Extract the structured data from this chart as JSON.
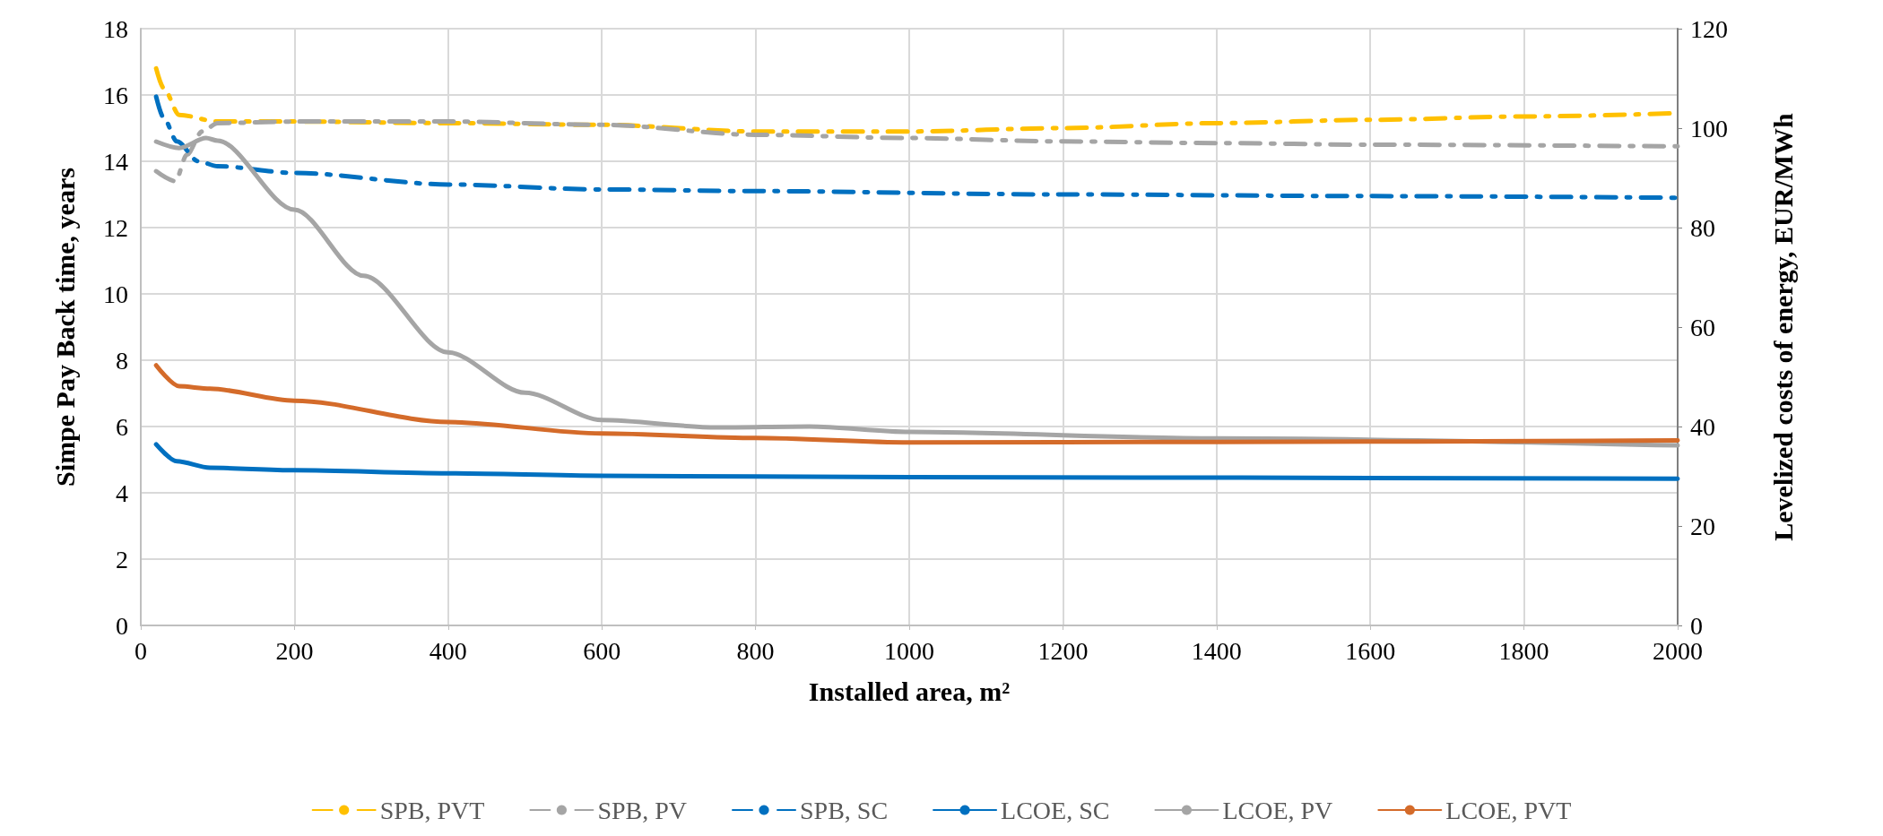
{
  "chart_data": {
    "type": "line",
    "xlabel": "Installed area, m²",
    "ylabel": "Simpe Pay Back time, years",
    "y2label": "Levelized costs of energy, EUR/MWh",
    "xlim": [
      0,
      2000
    ],
    "xticks": [
      0,
      200,
      400,
      600,
      800,
      1000,
      1200,
      1400,
      1600,
      1800,
      2000
    ],
    "ylim": [
      0,
      18
    ],
    "yticks": [
      0,
      2,
      4,
      6,
      8,
      10,
      12,
      14,
      16,
      18
    ],
    "y2lim": [
      0,
      120
    ],
    "y2ticks": [
      0,
      20,
      40,
      60,
      80,
      100,
      120
    ],
    "grid": true,
    "legend": "bottom",
    "marker": "none",
    "series": [
      {
        "name": "SPB, PVT",
        "color": "#ffc000",
        "line_style": "dashed",
        "x": [
          20,
          30,
          50,
          100,
          200,
          400,
          600,
          800,
          1000,
          1200,
          1400,
          1600,
          1800,
          2000
        ],
        "values": [
          16.8,
          16.2,
          15.4,
          15.2,
          15.2,
          15.15,
          15.1,
          14.9,
          14.9,
          15.0,
          15.15,
          15.25,
          15.35,
          15.45
        ]
      },
      {
        "name": "SPB, PV",
        "color": "#a5a5a5",
        "line_style": "dashed",
        "x": [
          20,
          45,
          60,
          80,
          100,
          200,
          400,
          600,
          800,
          1000,
          1200,
          1400,
          1600,
          2000
        ],
        "values": [
          13.7,
          13.4,
          14.2,
          14.9,
          15.15,
          15.2,
          15.2,
          15.1,
          14.8,
          14.7,
          14.6,
          14.55,
          14.5,
          14.45
        ]
      },
      {
        "name": "SPB, SC",
        "color": "#0070c0",
        "line_style": "dashed",
        "x": [
          20,
          30,
          47,
          75,
          100,
          200,
          400,
          600,
          800,
          1200,
          1600,
          2000
        ],
        "values": [
          15.95,
          15.3,
          14.6,
          14.0,
          13.85,
          13.65,
          13.3,
          13.15,
          13.1,
          13.0,
          12.95,
          12.9
        ]
      },
      {
        "name": "LCOE, SC",
        "color": "#0070c0",
        "line_style": "solid",
        "axis": "y2",
        "x": [
          20,
          47,
          90,
          200,
          400,
          600,
          1000,
          2000
        ],
        "values": [
          36.4,
          33.0,
          31.7,
          31.2,
          30.6,
          30.1,
          29.8,
          29.5
        ]
      },
      {
        "name": "LCOE, PV",
        "color": "#a5a5a5",
        "line_style": "solid",
        "axis": "y2",
        "x": [
          20,
          50,
          85,
          100,
          200,
          290,
          400,
          500,
          600,
          750,
          870,
          1000,
          1400,
          2000
        ],
        "values": [
          97.3,
          96.0,
          98.0,
          97.5,
          83.6,
          70.3,
          54.9,
          46.8,
          41.3,
          39.8,
          40.0,
          38.9,
          37.6,
          36.2
        ]
      },
      {
        "name": "LCOE, PVT",
        "color": "#d46b2a",
        "line_style": "solid",
        "axis": "y2",
        "x": [
          20,
          50,
          90,
          200,
          400,
          600,
          800,
          1000,
          1400,
          2000
        ],
        "values": [
          52.3,
          48.1,
          47.6,
          45.2,
          40.9,
          38.6,
          37.7,
          36.8,
          36.9,
          37.2
        ]
      }
    ]
  }
}
